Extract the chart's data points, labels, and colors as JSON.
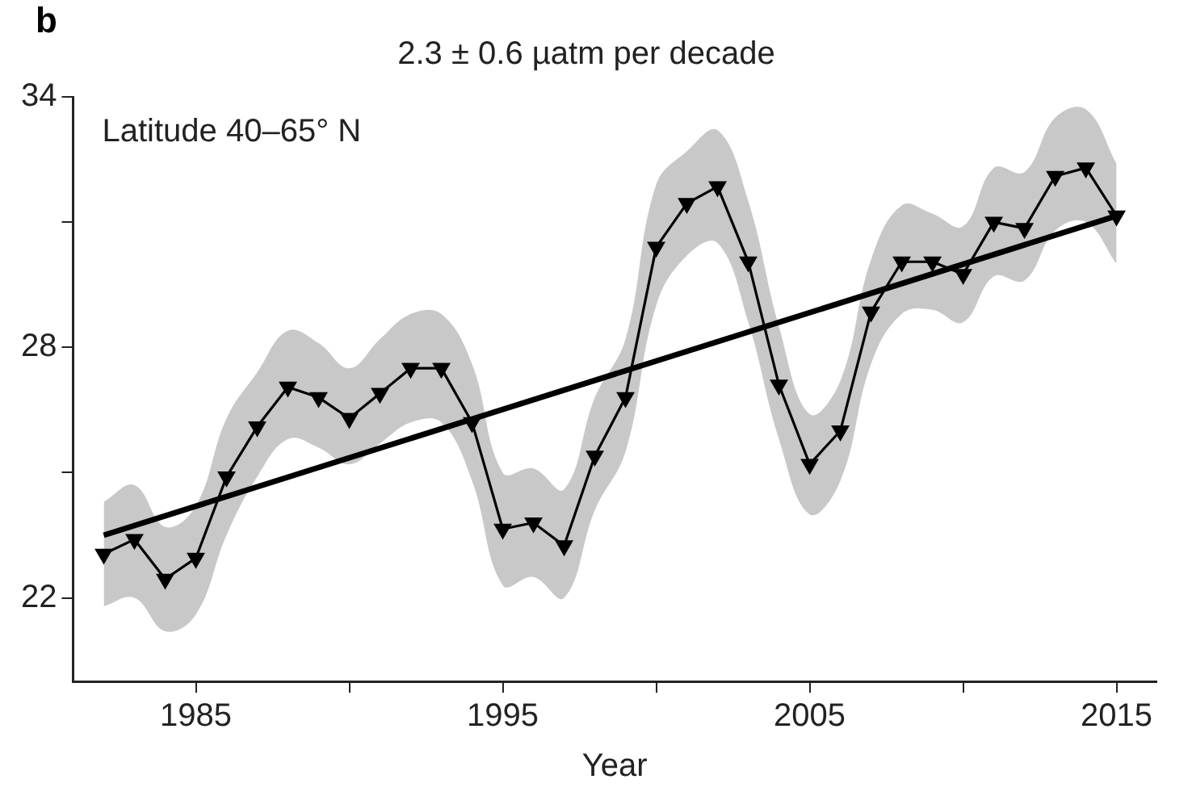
{
  "chart_data": {
    "type": "line",
    "title": "2.3 ± 0.6 µatm per decade",
    "xlabel": "Year",
    "annotations": [
      "b",
      "Latitude 40–65° N"
    ],
    "x": [
      1982,
      1983,
      1984,
      1985,
      1986,
      1987,
      1988,
      1989,
      1990,
      1991,
      1992,
      1993,
      1994,
      1995,
      1996,
      1997,
      1998,
      1999,
      2000,
      2001,
      2002,
      2003,
      2004,
      2005,
      2006,
      2007,
      2008,
      2009,
      2010,
      2011,
      2012,
      2013,
      2014,
      2015
    ],
    "series": [
      {
        "type": "line",
        "color": "#000000",
        "marker": "triangle",
        "values": [
          23.05,
          23.4,
          22.45,
          22.95,
          24.9,
          26.1,
          27.05,
          26.8,
          26.3,
          26.9,
          27.5,
          27.5,
          26.2,
          23.65,
          23.8,
          23.25,
          25.4,
          26.8,
          30.4,
          31.45,
          31.85,
          30.05,
          27.1,
          25.2,
          26.0,
          28.85,
          30.05,
          30.05,
          29.75,
          31.0,
          30.85,
          32.1,
          32.3,
          31.15
        ],
        "lower": [
          21.8,
          22.0,
          21.2,
          21.6,
          23.5,
          24.9,
          25.8,
          25.6,
          25.2,
          25.7,
          26.2,
          26.2,
          24.8,
          22.3,
          22.5,
          22.0,
          24.1,
          25.5,
          29.0,
          30.2,
          30.5,
          28.6,
          25.8,
          24.0,
          24.8,
          27.6,
          28.8,
          28.9,
          28.6,
          29.7,
          29.6,
          30.8,
          31.0,
          30.0
        ],
        "upper": [
          24.3,
          24.7,
          23.7,
          24.2,
          26.3,
          27.4,
          28.4,
          28.1,
          27.5,
          28.2,
          28.8,
          28.8,
          27.6,
          25.0,
          25.1,
          24.6,
          26.8,
          28.2,
          31.9,
          32.7,
          33.2,
          31.5,
          28.5,
          26.4,
          27.2,
          30.1,
          31.4,
          31.2,
          30.9,
          32.3,
          32.2,
          33.5,
          33.7,
          32.4
        ]
      },
      {
        "type": "line",
        "color": "#000000",
        "marker": "none",
        "x": [
          1982,
          2015
        ],
        "values": [
          23.5,
          31.15
        ]
      }
    ],
    "xlim": [
      1981,
      2016.3
    ],
    "ylim": [
      20,
      34
    ],
    "xticks": [
      1985,
      {
        "value": 1990,
        "label": null
      },
      1995,
      {
        "value": 2000,
        "label": null
      },
      2005,
      {
        "value": 2010,
        "label": null
      },
      2015
    ],
    "yticks": [
      22,
      {
        "value": 25,
        "label": null
      },
      28,
      {
        "value": 31,
        "label": null
      },
      34
    ],
    "grid": false,
    "legend": false
  }
}
